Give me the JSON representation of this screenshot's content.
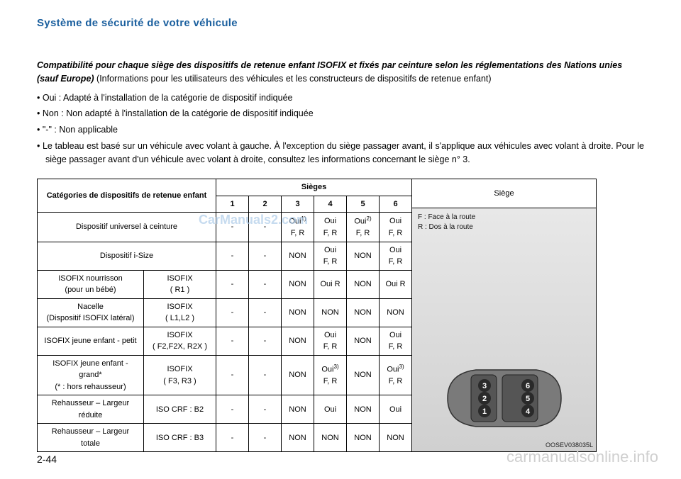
{
  "header": "Système de sécurité de votre véhicule",
  "pageNum": "2-44",
  "watermark1": "CarManuals2.com",
  "watermark2": "carmanualsonline.info",
  "intro": {
    "titleBold": "Compatibilité pour chaque siège des dispositifs de retenue enfant ISOFIX et fixés par ceinture selon les réglementations des Nations unies (sauf Europe)",
    "titleRest": "   (Informations pour les utilisateurs des véhicules et les constructeurs de dispositifs de retenue enfant)"
  },
  "bullets": [
    "Oui  : Adapté à l'installation de la catégorie de dispositif indiquée",
    "Non  : Non adapté à l'installation de la catégorie de dispositif indiquée",
    "\"-\" : Non applicable",
    "Le tableau est basé sur un véhicule avec volant à gauche. À l'exception du siège passager avant, il s'applique aux véhicules avec volant à droite. Pour le siège passager avant d'un véhicule avec volant à droite, consultez les informations concernant le siège n° 3."
  ],
  "table": {
    "catHeader": "Catégories de dispositifs de retenue enfant",
    "seatsHeader": "Sièges",
    "seatNums": [
      "1",
      "2",
      "3",
      "4",
      "5",
      "6"
    ],
    "sideTitle": "Siège",
    "legendF": "F : Face à la route",
    "legendR": "R : Dos à la route",
    "imgCode": "OOSEV038035L",
    "rows": [
      {
        "cat": "Dispositif universel à ceinture",
        "sub": "",
        "span": true,
        "cells": [
          "-",
          "-",
          "Oui<sup>1)</sup><br>F, R",
          "Oui<br>F, R",
          "Oui<sup>2)</sup><br>F, R",
          "Oui<br>F, R"
        ]
      },
      {
        "cat": "Dispositif i-Size",
        "sub": "",
        "span": true,
        "cells": [
          "-",
          "-",
          "NON",
          "Oui<br>F, R",
          "NON",
          "Oui<br>F, R"
        ]
      },
      {
        "cat": "ISOFIX nourrisson<br>(pour un bébé)",
        "sub": "ISOFIX<br>( R1 )",
        "cells": [
          "-",
          "-",
          "NON",
          "Oui R",
          "NON",
          "Oui R"
        ]
      },
      {
        "cat": "Nacelle<br>(Dispositif ISOFIX latéral)",
        "sub": "ISOFIX<br>( L1,L2 )",
        "cells": [
          "-",
          "-",
          "NON",
          "NON",
          "NON",
          "NON"
        ]
      },
      {
        "cat": "ISOFIX jeune enfant - petit",
        "sub": "ISOFIX<br>( F2,F2X, R2X )",
        "cells": [
          "-",
          "-",
          "NON",
          "Oui<br>F, R",
          "NON",
          "Oui<br>F, R"
        ]
      },
      {
        "cat": "ISOFIX jeune enfant - grand*<br>(*  : hors rehausseur)",
        "sub": "ISOFIX<br>( F3, R3 )",
        "cells": [
          "-",
          "-",
          "NON",
          "Oui<sup>3)</sup><br>F, R",
          "NON",
          "Oui<sup>3)</sup><br>F, R"
        ]
      },
      {
        "cat": "Rehausseur – Largeur réduite",
        "sub": "ISO CRF : B2",
        "cells": [
          "-",
          "-",
          "NON",
          "Oui",
          "NON",
          "Oui"
        ]
      },
      {
        "cat": "Rehausseur – Largeur totale",
        "sub": "ISO CRF : B3",
        "cells": [
          "-",
          "-",
          "NON",
          "NON",
          "NON",
          "NON"
        ]
      }
    ]
  },
  "carSeats": [
    "1",
    "2",
    "3",
    "4",
    "5",
    "6"
  ]
}
